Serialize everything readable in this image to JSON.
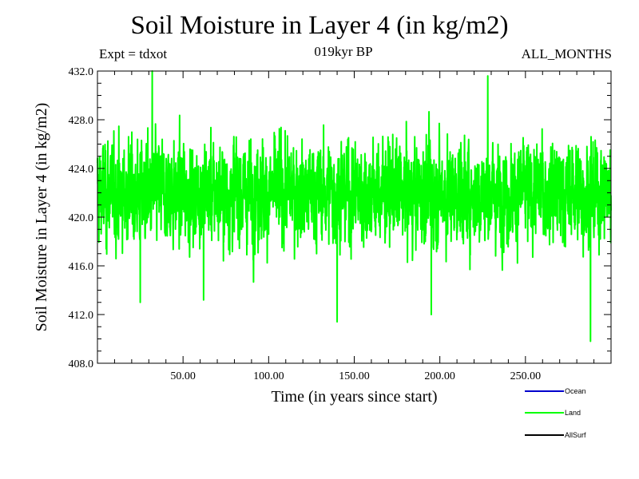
{
  "subtitles": {
    "left": "Expt = tdxot",
    "center": "019kyr BP",
    "right": "ALL_MONTHS"
  },
  "chart_data": {
    "type": "line",
    "title": "Soil Moisture in Layer 4 (in kg/m2)",
    "xlabel": "Time (in years since start)",
    "ylabel": "Soil Moisture in Layer 4 (in kg/m2)",
    "xlim": [
      0,
      300
    ],
    "ylim": [
      408.0,
      432.0
    ],
    "xticks": [
      "50.00",
      "100.00",
      "150.00",
      "200.00",
      "250.00"
    ],
    "xtick_values": [
      50,
      100,
      150,
      200,
      250
    ],
    "yticks": [
      "408.0",
      "412.0",
      "416.0",
      "420.0",
      "424.0",
      "428.0",
      "432.0"
    ],
    "ytick_values": [
      408,
      412,
      416,
      420,
      424,
      428,
      432
    ],
    "grid": false,
    "legend_position": "bottom-right, below plot",
    "series": [
      {
        "name": "Ocean",
        "color": "#0000cc",
        "values": []
      },
      {
        "name": "Land",
        "color": "#00ff00",
        "mean": 422.0,
        "min": 409.8,
        "max": 432.0,
        "sampling": "monthly, 0-300 years",
        "extremes": [
          {
            "x": 32,
            "y": 432.0
          },
          {
            "x": 140,
            "y": 411.4
          },
          {
            "x": 228,
            "y": 431.6
          },
          {
            "x": 288,
            "y": 409.8
          },
          {
            "x": 25,
            "y": 413.0
          },
          {
            "x": 62,
            "y": 413.2
          },
          {
            "x": 195,
            "y": 412.0
          }
        ]
      },
      {
        "name": "AllSurf",
        "color": "#000000",
        "values": []
      }
    ]
  }
}
